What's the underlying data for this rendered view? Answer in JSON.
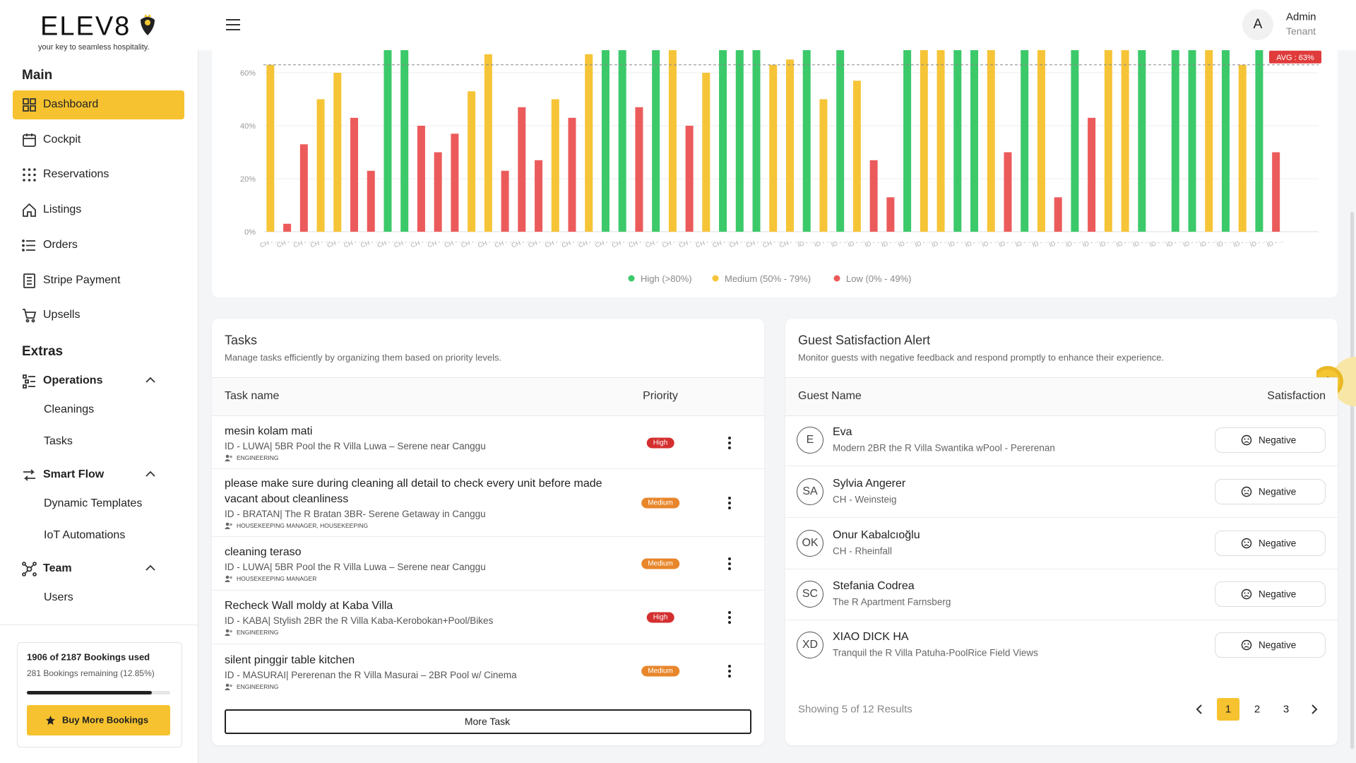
{
  "sidebar": {
    "logo": "ELEV8",
    "tagline": "your key to seamless hospitality.",
    "sections": [
      {
        "title": "Main",
        "items": [
          {
            "label": "Dashboard",
            "active": true
          },
          {
            "label": "Cockpit"
          },
          {
            "label": "Reservations"
          },
          {
            "label": "Listings"
          },
          {
            "label": "Orders"
          },
          {
            "label": "Stripe Payment"
          },
          {
            "label": "Upsells"
          }
        ]
      },
      {
        "title": "Extras",
        "items": [
          {
            "label": "Operations",
            "children": [
              "Cleanings",
              "Tasks"
            ]
          },
          {
            "label": "Smart Flow",
            "children": [
              "Dynamic Templates",
              "IoT Automations"
            ]
          },
          {
            "label": "Team",
            "children": [
              "Users"
            ]
          }
        ]
      }
    ],
    "bookings": {
      "used_text": "1906 of 2187 Bookings used",
      "remaining_text": "281 Bookings remaining (12.85%)",
      "used": 1906,
      "total": 2187,
      "button": "Buy More Bookings"
    }
  },
  "header": {
    "avatar": "A",
    "user_name": "Admin",
    "user_role": "Tenant"
  },
  "chart_data": {
    "type": "bar",
    "categories": [
      "CH - ...",
      "CH - ...",
      "CH - ...",
      "CH - ...",
      "CH - ...",
      "CH - ...",
      "CH - ...",
      "CH - ...",
      "CH - ...",
      "CH - ...",
      "CH - ...",
      "CH - ...",
      "CH - ...",
      "CH - ...",
      "CH - ...",
      "CH - ...",
      "CH - ...",
      "CH - ...",
      "CH - ...",
      "CH - ...",
      "CH - ...",
      "CH - ...",
      "CH - ...",
      "CH - ...",
      "CH - ...",
      "CH - ...",
      "CH - ...",
      "CH - ...",
      "CH - ...",
      "CH - ...",
      "CH - ...",
      "CH - ...",
      "ID - ...",
      "ID - ...",
      "ID - ...",
      "ID - ...",
      "ID - ...",
      "ID - ...",
      "ID - ...",
      "ID - ...",
      "ID - ...",
      "ID - ...",
      "ID - ...",
      "ID - ...",
      "ID - ...",
      "ID - ...",
      "ID - ...",
      "ID - ...",
      "ID - ...",
      "ID - ...",
      "ID - ...",
      "ID - ...",
      "ID - ...",
      "ID - ...",
      "ID - ...",
      "ID - ...",
      "ID - ...",
      "ID - ...",
      "ID - ...",
      "ID - ...",
      "ID - ..."
    ],
    "series": [
      {
        "name": "High (>80%)",
        "color": "#3cc96a",
        "values": [
          null,
          null,
          null,
          null,
          null,
          null,
          null,
          85,
          85,
          null,
          null,
          null,
          null,
          null,
          null,
          null,
          null,
          null,
          null,
          null,
          90,
          95,
          null,
          88,
          null,
          null,
          null,
          90,
          92,
          86,
          null,
          null,
          90,
          null,
          88,
          null,
          null,
          null,
          90,
          null,
          null,
          90,
          88,
          null,
          null,
          90,
          null,
          null,
          88,
          null,
          null,
          null,
          88,
          null,
          85,
          92,
          null,
          88,
          null,
          85,
          null
        ]
      },
      {
        "name": "Medium (50% - 79%)",
        "color": "#f6c437",
        "values": [
          63,
          null,
          null,
          50,
          60,
          null,
          null,
          null,
          null,
          null,
          null,
          null,
          53,
          67,
          null,
          null,
          null,
          50,
          null,
          67,
          null,
          null,
          null,
          null,
          75,
          null,
          60,
          null,
          null,
          null,
          63,
          65,
          null,
          50,
          null,
          57,
          null,
          null,
          null,
          75,
          78,
          null,
          null,
          72,
          null,
          null,
          74,
          null,
          null,
          null,
          76,
          70,
          null,
          null,
          null,
          null,
          72,
          null,
          63,
          null,
          null
        ]
      },
      {
        "name": "Low (0% - 49%)",
        "color": "#ec5b5b",
        "values": [
          null,
          3,
          33,
          null,
          null,
          43,
          23,
          null,
          null,
          40,
          30,
          37,
          null,
          null,
          23,
          47,
          27,
          null,
          43,
          null,
          null,
          null,
          47,
          null,
          null,
          40,
          null,
          null,
          null,
          null,
          null,
          null,
          null,
          null,
          null,
          null,
          27,
          13,
          null,
          null,
          null,
          null,
          null,
          null,
          30,
          null,
          null,
          13,
          null,
          43,
          null,
          null,
          null,
          0,
          null,
          null,
          null,
          null,
          null,
          null,
          30
        ]
      }
    ],
    "ylim": [
      0,
      100
    ],
    "yticks": [
      {
        "value": 0,
        "label": "0%"
      },
      {
        "value": 20,
        "label": "20%"
      },
      {
        "value": 40,
        "label": "40%"
      },
      {
        "value": 60,
        "label": "60%"
      }
    ],
    "grid": true,
    "average": {
      "value": 63,
      "label": "AVG : 63%"
    }
  },
  "tasks": {
    "title": "Tasks",
    "subtitle": "Manage tasks efficiently by organizing them based on priority levels.",
    "columns": [
      "Task name",
      "Priority"
    ],
    "rows": [
      {
        "name": "mesin kolam mati",
        "listing": "ID - LUWA| 5BR Pool the R Villa Luwa – Serene near Canggu",
        "roles": "ENGINEERING",
        "priority": "High"
      },
      {
        "name": "please make sure during cleaning all detail to check every unit before made vacant about cleanliness",
        "listing": "ID - BRATAN| The R Bratan 3BR- Serene Getaway in Canggu",
        "roles": "HOUSEKEEPING MANAGER, HOUSEKEEPING",
        "priority": "Medium"
      },
      {
        "name": "cleaning teraso",
        "listing": "ID - LUWA| 5BR Pool the R Villa Luwa – Serene near Canggu",
        "roles": "HOUSEKEEPING MANAGER",
        "priority": "Medium"
      },
      {
        "name": "Recheck Wall moldy at Kaba Villa",
        "listing": "ID - KABA| Stylish 2BR the R Villa Kaba-Kerobokan+Pool/Bikes",
        "roles": "ENGINEERING",
        "priority": "High"
      },
      {
        "name": "silent pinggir table kitchen",
        "listing": "ID - MASURAI| Pererenan the R Villa Masurai – 2BR Pool w/ Cinema",
        "roles": "ENGINEERING",
        "priority": "Medium"
      }
    ],
    "button": "More Task"
  },
  "guests": {
    "title": "Guest Satisfaction Alert",
    "subtitle": "Monitor guests with negative feedback and respond promptly to enhance their experience.",
    "columns": [
      "Guest Name",
      "Satisfaction"
    ],
    "rows": [
      {
        "initials": "E",
        "name": "Eva",
        "property": "Modern 2BR the R Villa Swantika wPool - Pererenan",
        "satisfaction": "Negative"
      },
      {
        "initials": "SA",
        "name": "Sylvia Angerer",
        "property": "CH - Weinsteig",
        "satisfaction": "Negative"
      },
      {
        "initials": "OK",
        "name": "Onur Kabalcıoğlu",
        "property": "CH - Rheinfall",
        "satisfaction": "Negative"
      },
      {
        "initials": "SC",
        "name": "Stefania Codrea",
        "property": "The R Apartment Farnsberg",
        "satisfaction": "Negative"
      },
      {
        "initials": "XD",
        "name": "XIAO DICK HA",
        "property": "Tranquil the R Villa Patuha-PoolRice Field Views",
        "satisfaction": "Negative"
      }
    ],
    "footer": "Showing 5 of 12 Results",
    "pages": [
      1,
      2,
      3
    ],
    "current_page": 1
  }
}
